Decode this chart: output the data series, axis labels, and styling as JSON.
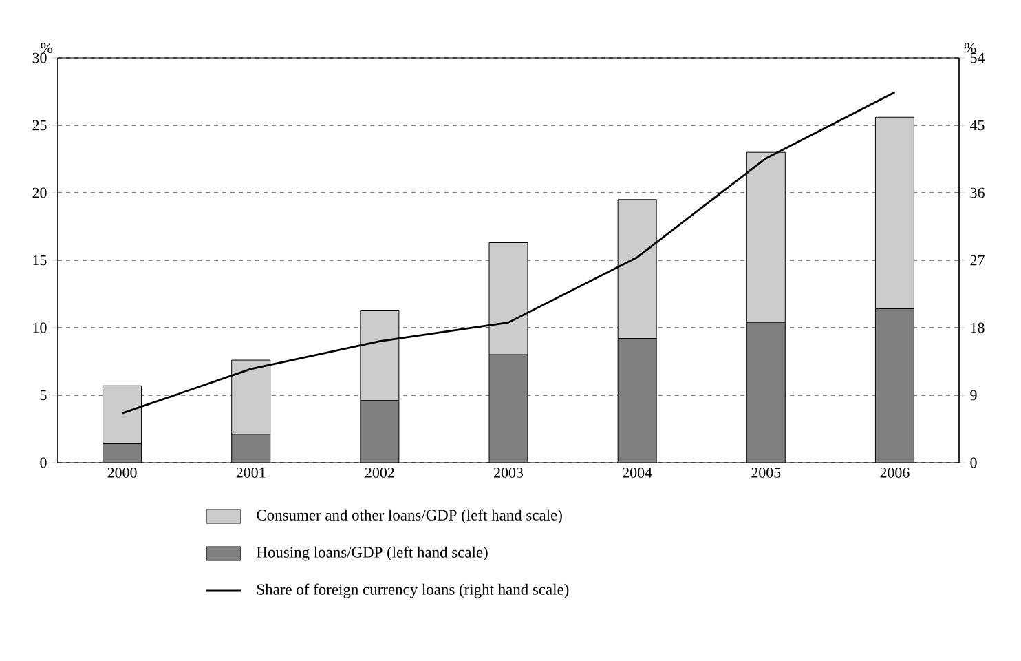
{
  "chart_data": {
    "type": "bar",
    "stacked": true,
    "categories": [
      "2000",
      "2001",
      "2002",
      "2003",
      "2004",
      "2005",
      "2006"
    ],
    "ylabel": "%",
    "y2label": "%",
    "ylim": [
      0,
      30
    ],
    "yticks": [
      0,
      5,
      10,
      15,
      20,
      25,
      30
    ],
    "y2lim": [
      0,
      54
    ],
    "y2ticks": [
      0,
      9,
      18,
      27,
      36,
      45,
      54
    ],
    "grid": "y",
    "legend": "bottom",
    "series": [
      {
        "name": "Housing loans/GDP (left hand scale)",
        "color": "#808080",
        "values": [
          1.4,
          2.1,
          4.6,
          8.0,
          9.2,
          10.4,
          11.4
        ]
      },
      {
        "name": "Consumer and other loans/GDP (left hand scale)",
        "color": "#cccccc",
        "values": [
          4.3,
          5.5,
          6.7,
          8.3,
          10.3,
          12.6,
          14.2
        ]
      },
      {
        "name": "Share of foreign currency loans (right hand scale)",
        "type": "line",
        "axis": "y2",
        "color": "#000000",
        "line_style": "solid",
        "marker": "none",
        "values": [
          6.6,
          12.5,
          16.2,
          18.7,
          27.4,
          40.6,
          49.4
        ]
      }
    ]
  }
}
